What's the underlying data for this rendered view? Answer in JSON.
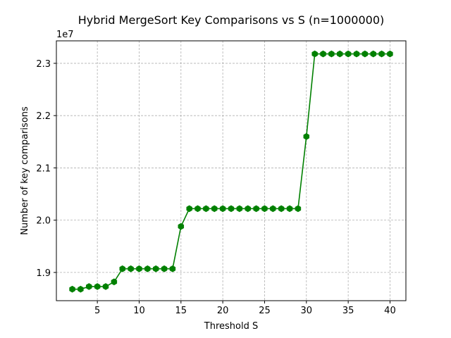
{
  "chart_data": {
    "type": "line",
    "title": "Hybrid MergeSort Key Comparisons vs S (n=1000000)",
    "xlabel": "Threshold S",
    "ylabel": "Number of key comparisons",
    "y_offset_label": "1e7",
    "xlim": [
      0.1,
      41.9
    ],
    "ylim": [
      18460000,
      23430000
    ],
    "xticks": [
      5,
      10,
      15,
      20,
      25,
      30,
      35,
      40
    ],
    "xtick_labels": [
      "5",
      "10",
      "15",
      "20",
      "25",
      "30",
      "35",
      "40"
    ],
    "yticks": [
      19000000,
      20000000,
      21000000,
      22000000,
      23000000
    ],
    "ytick_labels": [
      "1.9",
      "2.0",
      "2.1",
      "2.2",
      "2.3"
    ],
    "grid": true,
    "grid_style": "dashed",
    "marker": "hexagon",
    "color": "#008000",
    "series": [
      {
        "name": "",
        "x": [
          2,
          3,
          4,
          5,
          6,
          7,
          8,
          9,
          10,
          11,
          12,
          13,
          14,
          15,
          16,
          17,
          18,
          19,
          20,
          21,
          22,
          23,
          24,
          25,
          26,
          27,
          28,
          29,
          30,
          31,
          32,
          33,
          34,
          35,
          36,
          37,
          38,
          39,
          40
        ],
        "y": [
          18680000,
          18680000,
          18730000,
          18730000,
          18730000,
          18820000,
          19070000,
          19070000,
          19070000,
          19070000,
          19070000,
          19070000,
          19070000,
          19880000,
          20220000,
          20220000,
          20220000,
          20220000,
          20220000,
          20220000,
          20220000,
          20220000,
          20220000,
          20220000,
          20220000,
          20220000,
          20220000,
          20220000,
          21600000,
          23180000,
          23180000,
          23180000,
          23180000,
          23180000,
          23180000,
          23180000,
          23180000,
          23180000,
          23180000
        ]
      }
    ]
  }
}
